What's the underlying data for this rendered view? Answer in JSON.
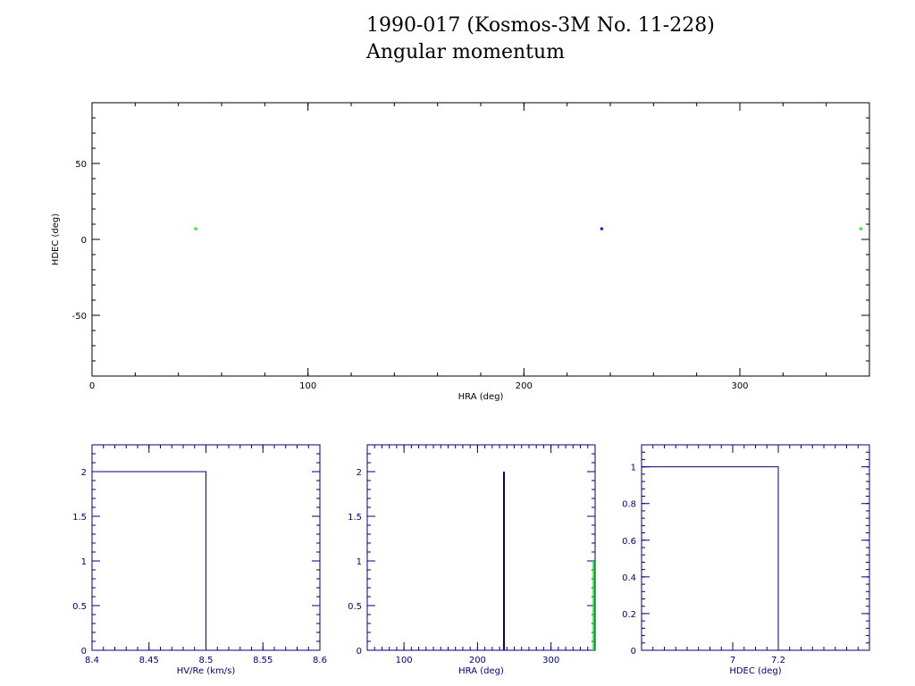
{
  "title": "1990-017 (Kosmos-3M No. 11-228)",
  "subtitle": "Angular momentum",
  "colors": {
    "main_axis": "#000000",
    "hist_axis": "#000080",
    "blue": "#0000ff",
    "green": "#00ff00",
    "hist_line": "#000080"
  },
  "chart_data": [
    {
      "type": "scatter",
      "xlabel": "HRA (deg)",
      "ylabel": "HDEC (deg)",
      "xlim": [
        0,
        360
      ],
      "ylim": [
        -90,
        90
      ],
      "xticks": [
        "0",
        "100",
        "200",
        "300"
      ],
      "yticks": [
        "50",
        "0",
        "-50"
      ],
      "series": [
        {
          "color": "green",
          "points": [
            [
              48,
              7
            ],
            [
              356,
              7
            ]
          ]
        },
        {
          "color": "blue",
          "points": [
            [
              236,
              7
            ]
          ]
        }
      ]
    },
    {
      "type": "bar",
      "xlabel": "HV/Re (km/s)",
      "xlim": [
        8.4,
        8.6
      ],
      "ylim": [
        0,
        2.3
      ],
      "xticks": [
        "8.4",
        "8.45",
        "8.5",
        "8.55",
        "8.6"
      ],
      "yticks": [
        "0",
        "0.5",
        "1",
        "1.5",
        "2"
      ],
      "bins": [
        {
          "x0": 8.4,
          "x1": 8.5,
          "value": 2
        }
      ]
    },
    {
      "type": "bar",
      "xlabel": "HRA (deg)",
      "xlim": [
        50,
        360
      ],
      "ylim": [
        0,
        2.3
      ],
      "xticks": [
        "100",
        "200",
        "300"
      ],
      "yticks": [
        "0",
        "0.5",
        "1",
        "1.5",
        "2"
      ],
      "bins": [
        {
          "x": 236,
          "value": 2,
          "color": "blue"
        },
        {
          "x": 358,
          "value": 1,
          "color": "green"
        }
      ]
    },
    {
      "type": "bar",
      "xlabel": "HDEC (deg)",
      "xlim": [
        6.6,
        7.6
      ],
      "ylim": [
        0,
        1.12
      ],
      "xticks": [
        "7",
        "7.2"
      ],
      "yticks": [
        "0",
        "0.2",
        "0.4",
        "0.6",
        "0.8",
        "1"
      ],
      "bins": [
        {
          "x0": 6.6,
          "x1": 7.2,
          "value": 1
        }
      ]
    }
  ]
}
